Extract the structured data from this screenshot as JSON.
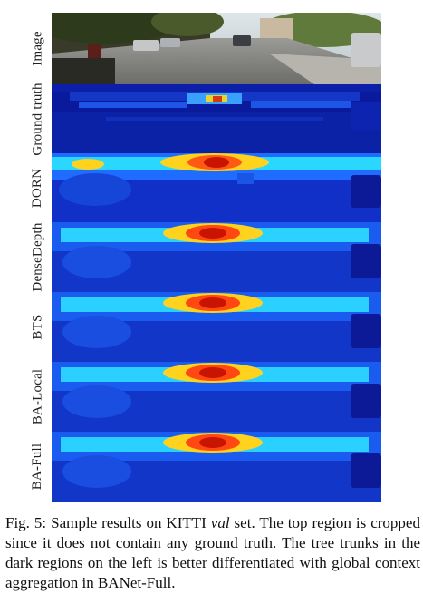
{
  "figure": {
    "row_labels": [
      "Image",
      "Ground truth",
      "DORN",
      "DenseDepth",
      "BTS",
      "BA-Local",
      "BA-Full"
    ]
  },
  "caption": {
    "prefix": "Fig. 5: Sample results on KITTI ",
    "italic": "val",
    "suffix": " set. The top region is cropped since it does not contain any ground truth. The tree trunks in the dark regions on the left is better differentiated with global context aggregation in BANet-Full."
  },
  "colors": {
    "depth_far": "#0a1a9c",
    "depth_mid": "#1b6cff",
    "depth_near": "#29e0ff",
    "depth_hot": "#c81400"
  }
}
